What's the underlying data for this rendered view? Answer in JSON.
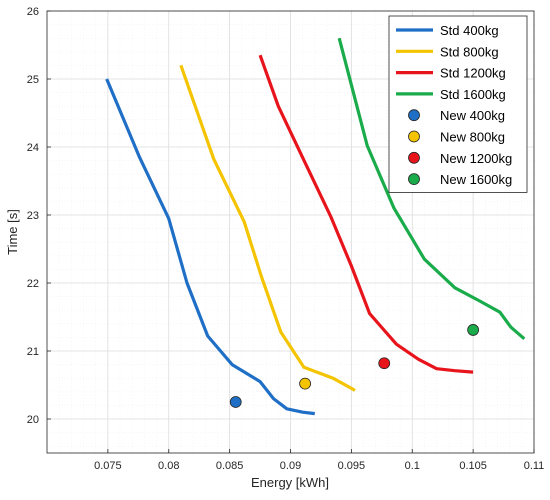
{
  "chart_data": {
    "type": "line",
    "xlabel": "Energy [kWh]",
    "ylabel": "Time [s]",
    "xlim": [
      0.07,
      0.11
    ],
    "ylim": [
      19.5,
      26
    ],
    "xticks": [
      "0.075",
      "0.08",
      "0.085",
      "0.09",
      "0.095",
      "0.1",
      "0.105",
      "0.11"
    ],
    "yticks": [
      "20",
      "21",
      "22",
      "23",
      "24",
      "25",
      "26"
    ],
    "xtick_values": [
      0.075,
      0.08,
      0.085,
      0.09,
      0.095,
      0.1,
      0.105,
      0.11
    ],
    "ytick_values": [
      20,
      21,
      22,
      23,
      24,
      25,
      26
    ],
    "grid": true,
    "legend_position": "top-right",
    "series": [
      {
        "name": "Std 400kg",
        "kind": "line",
        "color": "#1f6fc6",
        "x": [
          0.0749,
          0.0776,
          0.08,
          0.0815,
          0.0832,
          0.0852,
          0.0875,
          0.0886,
          0.0897,
          0.091,
          0.092
        ],
        "y": [
          25.0,
          23.85,
          22.95,
          22.0,
          21.22,
          20.8,
          20.55,
          20.3,
          20.15,
          20.1,
          20.08
        ]
      },
      {
        "name": "Std 800kg",
        "kind": "line",
        "color": "#f5c400",
        "x": [
          0.081,
          0.0837,
          0.0862,
          0.0876,
          0.0892,
          0.0911,
          0.0935,
          0.0953
        ],
        "y": [
          25.2,
          23.82,
          22.9,
          22.1,
          21.28,
          20.76,
          20.6,
          20.42
        ]
      },
      {
        "name": "Std 1200kg",
        "kind": "line",
        "color": "#e8141c",
        "x": [
          0.0875,
          0.089,
          0.0909,
          0.0933,
          0.095,
          0.0965,
          0.0987,
          0.1005,
          0.102,
          0.1035,
          0.105
        ],
        "y": [
          25.35,
          24.6,
          23.88,
          22.98,
          22.25,
          21.55,
          21.1,
          20.88,
          20.74,
          20.71,
          20.69
        ]
      },
      {
        "name": "Std 1600kg",
        "kind": "line",
        "color": "#1aab4b",
        "x": [
          0.094,
          0.0963,
          0.0985,
          0.101,
          0.1035,
          0.1056,
          0.1072,
          0.1081,
          0.1092
        ],
        "y": [
          25.6,
          24.02,
          23.1,
          22.35,
          21.93,
          21.73,
          21.57,
          21.35,
          21.18
        ]
      },
      {
        "name": "New 400kg",
        "kind": "marker",
        "color": "#1f6fc6",
        "x": [
          0.0855
        ],
        "y": [
          20.25
        ]
      },
      {
        "name": "New 800kg",
        "kind": "marker",
        "color": "#f5c400",
        "x": [
          0.0912
        ],
        "y": [
          20.52
        ]
      },
      {
        "name": "New 1200kg",
        "kind": "marker",
        "color": "#e8141c",
        "x": [
          0.0977
        ],
        "y": [
          20.82
        ]
      },
      {
        "name": "New 1600kg",
        "kind": "marker",
        "color": "#1aab4b",
        "x": [
          0.105
        ],
        "y": [
          21.31
        ]
      }
    ]
  }
}
